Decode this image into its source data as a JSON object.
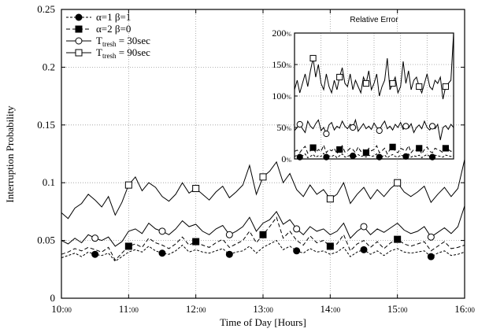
{
  "chart_data": [
    {
      "type": "line",
      "title": "",
      "xlabel": "Time of Day [Hours]",
      "ylabel": "Interruption Probability",
      "xlim": [
        10,
        16
      ],
      "ylim": [
        0,
        0.25
      ],
      "grid": true,
      "legend_position": "top-left",
      "x_ticks": [
        {
          "value": 10,
          "main": "10:",
          "sub": "00"
        },
        {
          "value": 11,
          "main": "11:",
          "sub": "00"
        },
        {
          "value": 12,
          "main": "12:",
          "sub": "00"
        },
        {
          "value": 13,
          "main": "13:",
          "sub": "00"
        },
        {
          "value": 14,
          "main": "14:",
          "sub": "00"
        },
        {
          "value": 15,
          "main": "15:",
          "sub": "00"
        },
        {
          "value": 16,
          "main": "16:",
          "sub": "00"
        }
      ],
      "y_ticks": [
        {
          "value": 0,
          "label": "0"
        },
        {
          "value": 0.05,
          "label": "0.05"
        },
        {
          "value": 0.1,
          "label": "0.1"
        },
        {
          "value": 0.15,
          "label": "0.15"
        },
        {
          "value": 0.2,
          "label": "0.2"
        },
        {
          "value": 0.25,
          "label": "0.25"
        }
      ],
      "x_step": 0.1,
      "series": [
        {
          "legend_main": "α=1 β=1",
          "legend_sub": "",
          "legend_tail": "",
          "marker": "filled-circle",
          "dash": "3,2",
          "values": [
            0.035,
            0.037,
            0.039,
            0.036,
            0.04,
            0.038,
            0.037,
            0.039,
            0.032,
            0.036,
            0.04,
            0.042,
            0.04,
            0.045,
            0.041,
            0.039,
            0.038,
            0.041,
            0.046,
            0.04,
            0.042,
            0.04,
            0.039,
            0.041,
            0.043,
            0.038,
            0.04,
            0.041,
            0.045,
            0.039,
            0.044,
            0.047,
            0.05,
            0.042,
            0.045,
            0.041,
            0.039,
            0.043,
            0.04,
            0.041,
            0.038,
            0.04,
            0.044,
            0.036,
            0.04,
            0.042,
            0.038,
            0.041,
            0.037,
            0.041,
            0.043,
            0.04,
            0.039,
            0.04,
            0.041,
            0.036,
            0.039,
            0.041,
            0.037,
            0.038,
            0.04
          ],
          "marker_x": [
            10.5,
            11.5,
            12.5,
            13.5,
            14.5,
            15.5
          ]
        },
        {
          "legend_main": "α=2 β=0",
          "legend_sub": "",
          "legend_tail": "",
          "marker": "filled-square",
          "dash": "5,3",
          "values": [
            0.038,
            0.04,
            0.043,
            0.041,
            0.044,
            0.042,
            0.04,
            0.044,
            0.033,
            0.039,
            0.045,
            0.047,
            0.044,
            0.052,
            0.048,
            0.046,
            0.043,
            0.047,
            0.053,
            0.046,
            0.049,
            0.046,
            0.044,
            0.048,
            0.051,
            0.044,
            0.047,
            0.05,
            0.058,
            0.048,
            0.055,
            0.062,
            0.07,
            0.052,
            0.058,
            0.05,
            0.046,
            0.054,
            0.048,
            0.05,
            0.045,
            0.047,
            0.055,
            0.041,
            0.047,
            0.05,
            0.044,
            0.049,
            0.043,
            0.048,
            0.051,
            0.047,
            0.045,
            0.047,
            0.049,
            0.041,
            0.045,
            0.049,
            0.043,
            0.044,
            0.046
          ],
          "marker_x": [
            11,
            12,
            13,
            14,
            15
          ]
        },
        {
          "legend_main": "T",
          "legend_sub": "tresh",
          "legend_tail": " = 30sec",
          "marker": "open-circle",
          "dash": "",
          "values": [
            0.05,
            0.047,
            0.052,
            0.048,
            0.055,
            0.052,
            0.05,
            0.053,
            0.045,
            0.049,
            0.058,
            0.06,
            0.056,
            0.065,
            0.06,
            0.058,
            0.055,
            0.06,
            0.067,
            0.062,
            0.064,
            0.058,
            0.055,
            0.06,
            0.063,
            0.055,
            0.058,
            0.062,
            0.07,
            0.058,
            0.065,
            0.068,
            0.075,
            0.064,
            0.068,
            0.06,
            0.055,
            0.062,
            0.058,
            0.06,
            0.055,
            0.058,
            0.065,
            0.052,
            0.058,
            0.062,
            0.055,
            0.06,
            0.057,
            0.061,
            0.065,
            0.059,
            0.056,
            0.058,
            0.062,
            0.053,
            0.057,
            0.061,
            0.056,
            0.062,
            0.08
          ],
          "marker_x": [
            10.5,
            11.5,
            12.5,
            13.5,
            14.5,
            15.5
          ]
        },
        {
          "legend_main": "T",
          "legend_sub": "tresh",
          "legend_tail": " = 90sec",
          "marker": "open-square",
          "dash": "",
          "values": [
            0.074,
            0.069,
            0.078,
            0.082,
            0.09,
            0.085,
            0.079,
            0.088,
            0.072,
            0.083,
            0.098,
            0.105,
            0.093,
            0.1,
            0.096,
            0.088,
            0.084,
            0.09,
            0.1,
            0.091,
            0.095,
            0.09,
            0.085,
            0.092,
            0.097,
            0.087,
            0.092,
            0.098,
            0.115,
            0.09,
            0.105,
            0.11,
            0.118,
            0.1,
            0.108,
            0.094,
            0.088,
            0.098,
            0.09,
            0.094,
            0.086,
            0.09,
            0.1,
            0.082,
            0.09,
            0.096,
            0.086,
            0.094,
            0.088,
            0.095,
            0.1,
            0.092,
            0.088,
            0.092,
            0.097,
            0.083,
            0.09,
            0.096,
            0.088,
            0.095,
            0.12
          ],
          "marker_x": [
            11,
            12,
            13,
            14,
            15
          ]
        }
      ]
    },
    {
      "type": "line",
      "title": "Relative Error",
      "xlim": [
        0,
        60
      ],
      "ylim": [
        0,
        2
      ],
      "grid": true,
      "y_ticks": [
        {
          "value": 0,
          "main": "0",
          "pct": "%"
        },
        {
          "value": 0.5,
          "main": "50",
          "pct": "%"
        },
        {
          "value": 1.0,
          "main": "100",
          "pct": "%"
        },
        {
          "value": 1.5,
          "main": "150",
          "pct": "%"
        },
        {
          "value": 2.0,
          "main": "200",
          "pct": "%"
        }
      ],
      "series": [
        {
          "marker": "filled-circle",
          "dash": "3,2",
          "values": [
            0.04,
            0.06,
            0.03,
            0.05,
            0.08,
            0.02,
            0.04,
            0.07,
            0.03,
            0.05,
            0.04,
            0.09,
            0.03,
            0.05,
            0.04,
            0.06,
            0.02,
            0.05,
            0.08,
            0.03,
            0.04,
            0.06,
            0.05,
            0.03,
            0.07,
            0.04,
            0.05,
            0.03,
            0.06,
            0.04,
            0.05,
            0.08,
            0.03,
            0.04,
            0.06,
            0.02,
            0.05,
            0.07,
            0.04,
            0.03,
            0.06,
            0.05,
            0.04,
            0.08,
            0.03,
            0.05,
            0.04,
            0.06,
            0.02,
            0.05,
            0.07,
            0.04,
            0.03,
            0.06,
            0.05,
            0.04,
            0.03,
            0.06,
            0.05,
            0.04,
            0.05
          ],
          "marker_x": [
            2,
            12,
            22,
            32,
            42,
            52
          ]
        },
        {
          "marker": "filled-square",
          "dash": "5,3",
          "values": [
            0.12,
            0.14,
            0.1,
            0.16,
            0.2,
            0.09,
            0.13,
            0.18,
            0.1,
            0.15,
            0.12,
            0.22,
            0.1,
            0.15,
            0.13,
            0.17,
            0.08,
            0.15,
            0.21,
            0.11,
            0.13,
            0.17,
            0.15,
            0.1,
            0.19,
            0.12,
            0.15,
            0.1,
            0.17,
            0.13,
            0.15,
            0.21,
            0.1,
            0.13,
            0.17,
            0.08,
            0.15,
            0.19,
            0.12,
            0.1,
            0.17,
            0.15,
            0.13,
            0.21,
            0.1,
            0.15,
            0.13,
            0.17,
            0.08,
            0.15,
            0.19,
            0.12,
            0.1,
            0.17,
            0.15,
            0.13,
            0.1,
            0.17,
            0.15,
            0.12,
            0.14
          ],
          "marker_x": [
            7,
            17,
            27,
            37,
            47,
            57
          ]
        },
        {
          "marker": "open-circle",
          "dash": "",
          "values": [
            0.45,
            0.5,
            0.55,
            0.48,
            0.42,
            0.6,
            0.52,
            0.48,
            0.56,
            0.62,
            0.45,
            0.5,
            0.4,
            0.54,
            0.58,
            0.46,
            0.52,
            0.49,
            0.6,
            0.52,
            0.48,
            0.55,
            0.5,
            0.62,
            0.44,
            0.5,
            0.56,
            0.48,
            0.52,
            0.47,
            0.57,
            0.5,
            0.45,
            0.54,
            0.6,
            0.48,
            0.52,
            0.46,
            0.55,
            0.5,
            0.58,
            0.47,
            0.52,
            0.49,
            0.56,
            0.42,
            0.5,
            0.54,
            0.48,
            0.6,
            0.5,
            0.46,
            0.52,
            0.48,
            0.55,
            0.3,
            0.5,
            0.53,
            0.47,
            0.55,
            0.5
          ],
          "marker_x": [
            2,
            12,
            22,
            32,
            42,
            52
          ]
        },
        {
          "marker": "open-square",
          "dash": "",
          "values": [
            1.1,
            1.25,
            1.05,
            1.2,
            1.35,
            1.15,
            1.4,
            1.6,
            1.3,
            1.5,
            1.2,
            1.1,
            1.35,
            1.15,
            1.05,
            1.25,
            1.1,
            1.3,
            1.45,
            1.2,
            1.15,
            1.35,
            1.1,
            1.25,
            1.15,
            1.05,
            1.3,
            1.2,
            1.4,
            1.1,
            1.2,
            1.35,
            1.0,
            1.15,
            1.25,
            1.6,
            1.1,
            1.2,
            1.3,
            1.05,
            1.15,
            1.55,
            1.2,
            1.4,
            1.1,
            1.25,
            1.3,
            1.15,
            1.05,
            1.2,
            1.35,
            1.15,
            1.1,
            1.25,
            1.2,
            1.3,
            0.95,
            1.15,
            1.2,
            1.25,
            2.0
          ],
          "marker_x": [
            7,
            17,
            27,
            37,
            47,
            57
          ]
        }
      ]
    }
  ]
}
